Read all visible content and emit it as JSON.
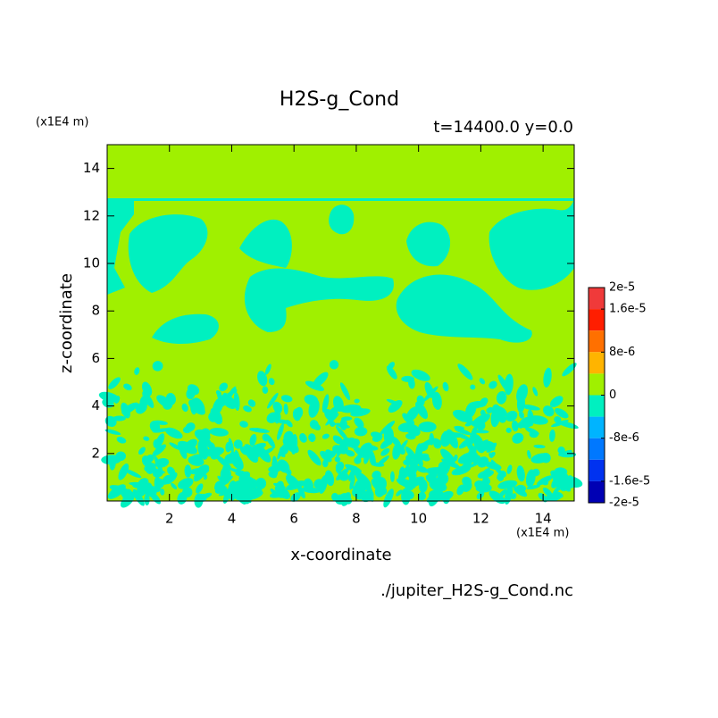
{
  "chart_data": {
    "type": "contour",
    "title": "H2S-g_Cond",
    "subtitle": "t=14400.0 y=0.0",
    "x_label": "x-coordinate",
    "y_label": "z-coordinate",
    "x_unit": "(x1E4 m)",
    "y_unit": "(x1E4 m)",
    "source": "./jupiter_H2S-g_Cond.nc",
    "xlim": [
      0,
      15
    ],
    "ylim": [
      0,
      15
    ],
    "xticks": [
      2,
      4,
      6,
      8,
      10,
      12,
      14
    ],
    "yticks": [
      2,
      4,
      6,
      8,
      10,
      12,
      14
    ],
    "colorbar": {
      "levels": [
        2e-05,
        1.6e-05,
        1.2e-05,
        8e-06,
        4e-06,
        0,
        -4e-06,
        -8e-06,
        -1.2e-05,
        -1.6e-05,
        -2e-05
      ],
      "colors": [
        "#f03a3a",
        "#ff1e00",
        "#ff7000",
        "#ffb400",
        "#a0f000",
        "#00f0c0",
        "#00b4ff",
        "#0078ff",
        "#0032f0",
        "#0000b4"
      ],
      "ticks": [
        {
          "value": 2e-05,
          "label": "2e-5"
        },
        {
          "value": 1.6e-05,
          "label": "1.6e-5"
        },
        {
          "value": 8e-06,
          "label": "8e-6"
        },
        0,
        {
          "value": -8e-06,
          "label": "-8e-6"
        },
        {
          "value": -1.6e-05,
          "label": "-1.6e-5"
        },
        {
          "value": -2e-05,
          "label": "-2e-5"
        }
      ]
    }
  }
}
